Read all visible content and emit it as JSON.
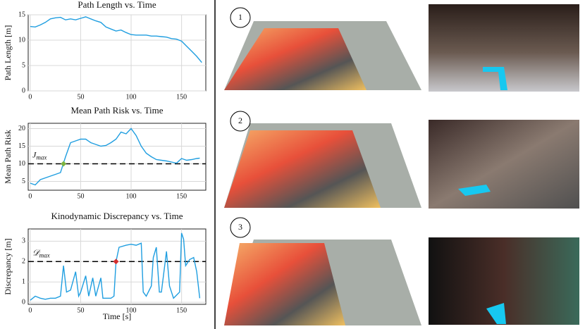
{
  "chart_data": [
    {
      "type": "line",
      "title": "Path Length vs. Time",
      "y_label": "Path Length [m]",
      "x": [
        0,
        5,
        10,
        15,
        20,
        25,
        30,
        35,
        40,
        45,
        50,
        55,
        60,
        65,
        70,
        75,
        80,
        85,
        90,
        95,
        100,
        105,
        110,
        115,
        120,
        125,
        130,
        135,
        140,
        145,
        150,
        155,
        160,
        165,
        170
      ],
      "values": [
        12.7,
        12.6,
        13,
        13.5,
        14.2,
        14.4,
        14.5,
        14,
        14.2,
        14,
        14.3,
        14.6,
        14.2,
        13.8,
        13.5,
        12.6,
        12.2,
        11.8,
        12,
        11.5,
        11.1,
        11,
        11,
        11,
        10.8,
        10.8,
        10.7,
        10.6,
        10.3,
        10.2,
        9.8,
        8.8,
        7.8,
        6.8,
        5.6
      ],
      "color": "#1f9ee0",
      "xlim": [
        -2,
        174
      ],
      "xticks": [
        0,
        50,
        100,
        150
      ],
      "ylim": [
        0,
        15
      ],
      "yticks": [
        0,
        5,
        10,
        15
      ],
      "grid": true
    },
    {
      "type": "line",
      "title": "Mean Path Risk vs. Time",
      "y_label": "Mean Path Risk",
      "x": [
        0,
        5,
        10,
        15,
        20,
        25,
        30,
        35,
        40,
        45,
        50,
        55,
        60,
        65,
        70,
        75,
        80,
        85,
        90,
        95,
        100,
        105,
        110,
        115,
        120,
        125,
        130,
        135,
        140,
        145,
        150,
        155,
        160,
        165,
        168
      ],
      "values": [
        4.5,
        4,
        5.5,
        6,
        6.5,
        7,
        7.5,
        12,
        16,
        16.5,
        17,
        17,
        16,
        15.5,
        15,
        15.2,
        16,
        17,
        19,
        18.5,
        20,
        18,
        15,
        13,
        12,
        11.2,
        11,
        10.8,
        10.5,
        10.2,
        11.5,
        11,
        11.2,
        11.5,
        11.6
      ],
      "color": "#1f9ee0",
      "xlim": [
        -2,
        174
      ],
      "xticks": [
        0,
        50,
        100,
        150
      ],
      "ylim": [
        2.5,
        21.5
      ],
      "yticks": [
        5,
        10,
        15,
        20
      ],
      "grid": true,
      "threshold": 10,
      "threshold_label": "J",
      "threshold_label_sub": "max",
      "marker": {
        "x": 33,
        "y": 10,
        "color": "#7cb342"
      }
    },
    {
      "type": "line",
      "title": "Kinodynamic Discrepancy vs. Time",
      "y_label": "Discrepancy [m]",
      "x_label": "Time [s]",
      "x": [
        0,
        5,
        10,
        15,
        20,
        25,
        30,
        33,
        36,
        40,
        45,
        48,
        50,
        55,
        58,
        62,
        65,
        70,
        72,
        80,
        83,
        85,
        88,
        95,
        100,
        105,
        110,
        112,
        115,
        120,
        122,
        125,
        128,
        130,
        135,
        138,
        142,
        148,
        150,
        152,
        154,
        158,
        162,
        165,
        168
      ],
      "values": [
        0.1,
        0.3,
        0.2,
        0.15,
        0.2,
        0.2,
        0.3,
        1.8,
        0.5,
        0.6,
        1.5,
        0.3,
        0.5,
        1.3,
        0.3,
        1.2,
        0.3,
        1.2,
        0.2,
        0.2,
        0.3,
        2,
        2.7,
        2.8,
        2.85,
        2.8,
        2.9,
        0.5,
        0.3,
        0.8,
        2.2,
        2.7,
        0.5,
        0.5,
        2.5,
        0.8,
        0.2,
        0.5,
        3.4,
        3.1,
        1.8,
        2.1,
        2.2,
        1.5,
        0.2
      ],
      "color": "#1f9ee0",
      "xlim": [
        -2,
        174
      ],
      "xticks": [
        0,
        50,
        100,
        150
      ],
      "ylim": [
        -0.1,
        3.6
      ],
      "yticks": [
        0,
        1,
        2,
        3
      ],
      "grid": true,
      "threshold": 2,
      "threshold_label": "𝒟",
      "threshold_label_sub": "max",
      "marker": {
        "x": 85,
        "y": 2,
        "color": "#d32f2f"
      }
    }
  ],
  "panels": [
    {
      "label": "1"
    },
    {
      "label": "2"
    },
    {
      "label": "3"
    }
  ]
}
